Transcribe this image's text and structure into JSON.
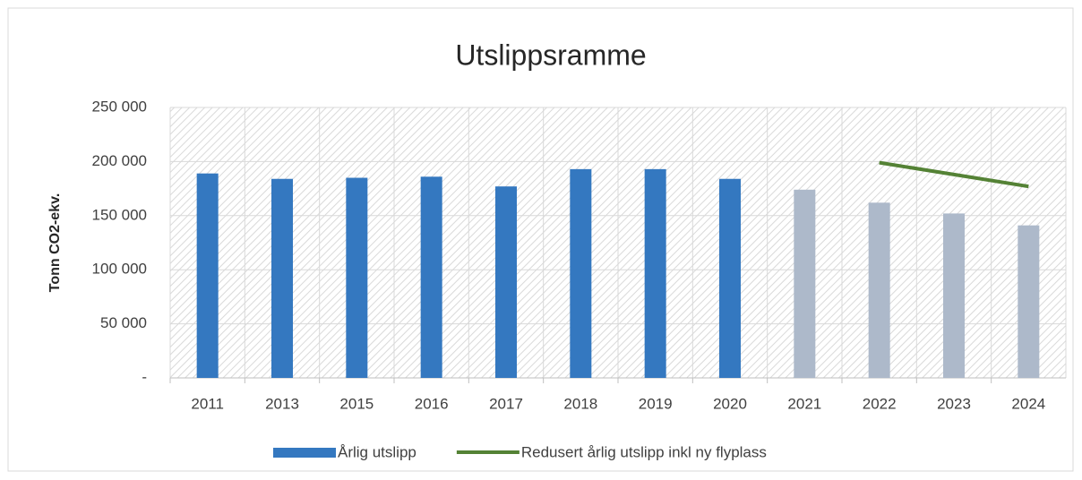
{
  "chart_data": {
    "type": "bar",
    "title": "Utslippsramme",
    "y_label": "Tonn CO2-ekv.",
    "categories": [
      "2011",
      "2013",
      "2015",
      "2016",
      "2017",
      "2018",
      "2019",
      "2020",
      "2021",
      "2022",
      "2023",
      "2024"
    ],
    "series": [
      {
        "name": "Årlig utslipp",
        "type": "bar",
        "color": "#3478c0",
        "colors": [
          "#3478c0",
          "#3478c0",
          "#3478c0",
          "#3478c0",
          "#3478c0",
          "#3478c0",
          "#3478c0",
          "#3478c0",
          "#adb9ca",
          "#adb9ca",
          "#adb9ca",
          "#adb9ca"
        ],
        "values": [
          189000,
          184000,
          185000,
          186000,
          177000,
          193000,
          193000,
          184000,
          174000,
          162000,
          152000,
          141000
        ]
      },
      {
        "name": "Redusert årlig utslipp inkl ny flyplass",
        "type": "line",
        "color": "#548235",
        "values": [
          null,
          null,
          null,
          null,
          null,
          null,
          null,
          null,
          null,
          199000,
          188000,
          177000
        ]
      }
    ],
    "ylim": [
      0,
      250000
    ],
    "yticks": [
      {
        "value": 0,
        "label": "-"
      },
      {
        "value": 50000,
        "label": "50 000"
      },
      {
        "value": 100000,
        "label": "100 000"
      },
      {
        "value": 150000,
        "label": "150 000"
      },
      {
        "value": 200000,
        "label": "200 000"
      },
      {
        "value": 250000,
        "label": "250 000"
      }
    ],
    "grid": true,
    "legend": "bottom"
  }
}
